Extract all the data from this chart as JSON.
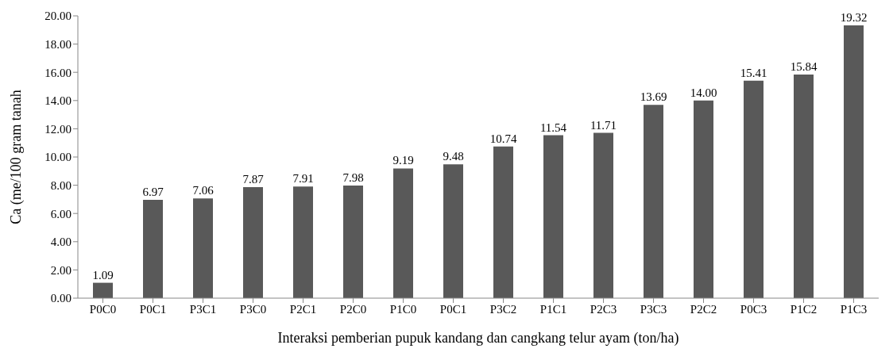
{
  "chart_data": {
    "type": "bar",
    "xlabel": "Interaksi pemberian pupuk kandang dan cangkang telur ayam (ton/ha)",
    "ylabel": "Ca (me/100 gram tanah",
    "categories": [
      "P0C0",
      "P0C1",
      "P3C1",
      "P3C0",
      "P2C1",
      "P2C0",
      "P1C0",
      "P0C1",
      "P3C2",
      "P1C1",
      "P2C3",
      "P3C3",
      "P2C2",
      "P0C3",
      "P1C2",
      "P1C3"
    ],
    "values": [
      1.09,
      6.97,
      7.06,
      7.87,
      7.91,
      7.98,
      9.19,
      9.48,
      10.74,
      11.54,
      11.71,
      13.69,
      14.0,
      15.41,
      15.84,
      19.32
    ],
    "value_labels": [
      "1.09",
      "6.97",
      "7.06",
      "7.87",
      "7.91",
      "7.98",
      "9.19",
      "9.48",
      "10.74",
      "11.54",
      "11.71",
      "13.69",
      "14.00",
      "15.41",
      "15.84",
      "19.32"
    ],
    "color": "#595959",
    "ylim": [
      0,
      20
    ],
    "yticks": [
      {
        "value": 0,
        "label": "0.00"
      },
      {
        "value": 2,
        "label": "2.00"
      },
      {
        "value": 4,
        "label": "4.00"
      },
      {
        "value": 6,
        "label": "6.00"
      },
      {
        "value": 8,
        "label": "8.00"
      },
      {
        "value": 10,
        "label": "10.00"
      },
      {
        "value": 12,
        "label": "12.00"
      },
      {
        "value": 14,
        "label": "14.00"
      },
      {
        "value": 16,
        "label": "16.00"
      },
      {
        "value": 18,
        "label": "18.00"
      },
      {
        "value": 20,
        "label": "20.00"
      }
    ]
  }
}
